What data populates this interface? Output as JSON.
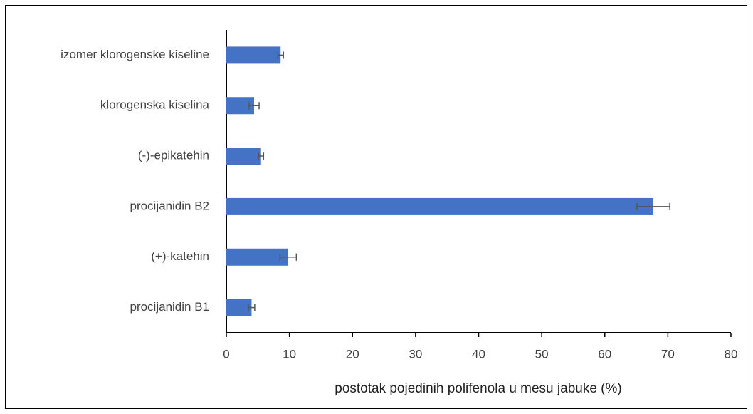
{
  "chart_data": {
    "type": "bar",
    "orientation": "horizontal",
    "x_label": "postotak pojedinih polifenola u mesu jabuke (%)",
    "categories": [
      "procijanidin B1",
      "(+)-katehin",
      "procijanidin B2",
      "(-)-epikatehin",
      "klorogenska kiselina",
      "izomer klorogenske kiseline"
    ],
    "values": [
      4.0,
      9.8,
      67.7,
      5.5,
      4.4,
      8.6
    ],
    "errors": [
      0.5,
      1.3,
      2.6,
      0.4,
      0.8,
      0.45
    ],
    "color": "#4472c4",
    "xlim": [
      0,
      80
    ],
    "xticks": [
      0,
      10,
      20,
      30,
      40,
      50,
      60,
      70,
      80
    ]
  }
}
